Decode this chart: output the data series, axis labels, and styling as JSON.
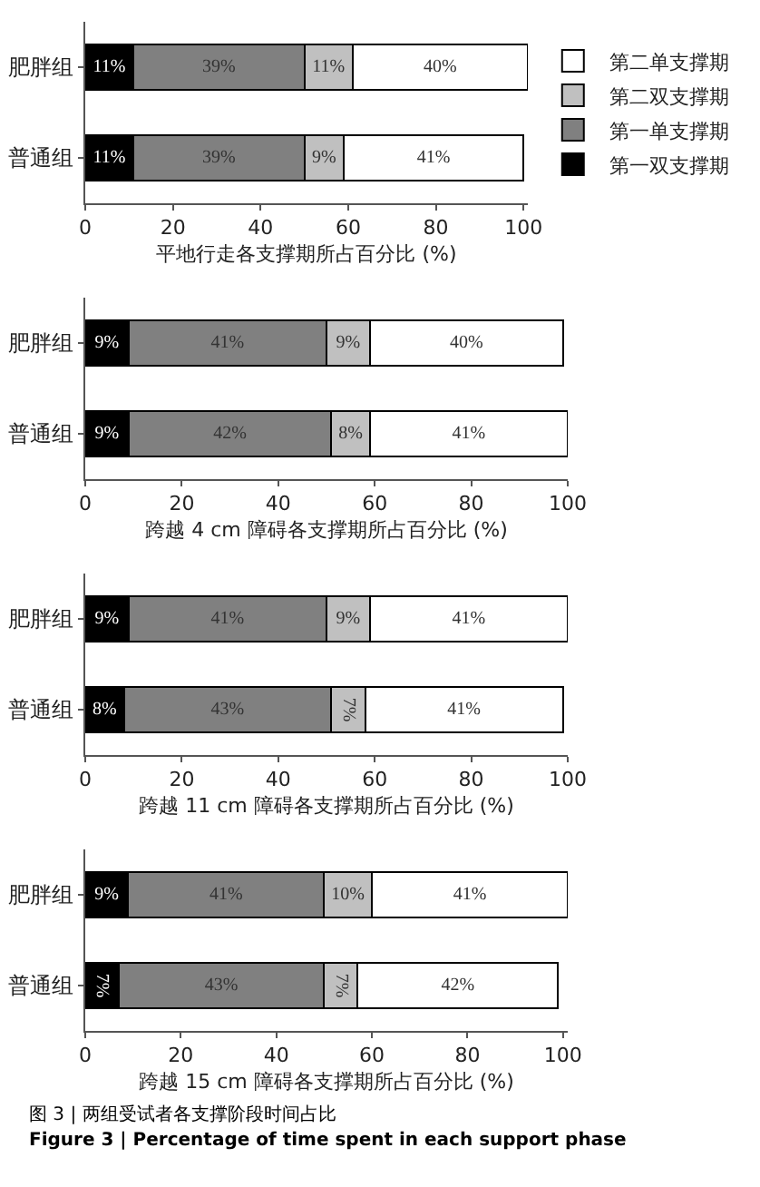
{
  "chart_data": [
    {
      "type": "bar",
      "orientation": "horizontal",
      "stacked": true,
      "xlabel": "平地行走各支撑期所占百分比 (%)",
      "categories": [
        "肥胖组",
        "普通组"
      ],
      "xlim": [
        0,
        101
      ],
      "xticks": [
        0,
        20,
        40,
        60,
        80,
        100
      ],
      "grid": false,
      "legend": "right",
      "series": [
        {
          "name": "第一双支撑期",
          "color": "#000000",
          "values": [
            11,
            11
          ],
          "value_labels": [
            "11%",
            "11%"
          ]
        },
        {
          "name": "第一单支撑期",
          "color": "#808080",
          "values": [
            39,
            39
          ],
          "value_labels": [
            "39%",
            "39%"
          ]
        },
        {
          "name": "第二双支撑期",
          "color": "#c0c0c0",
          "values": [
            11,
            9
          ],
          "value_labels": [
            "11%",
            "9%"
          ]
        },
        {
          "name": "第二单支撑期",
          "color": "#ffffff",
          "values": [
            40,
            41
          ],
          "value_labels": [
            "40%",
            "41%"
          ]
        }
      ]
    },
    {
      "type": "bar",
      "orientation": "horizontal",
      "stacked": true,
      "xlabel": "跨越 4 cm 障碍各支撑期所占百分比 (%)",
      "categories": [
        "肥胖组",
        "普通组"
      ],
      "xlim": [
        0,
        100
      ],
      "xticks": [
        0,
        20,
        40,
        60,
        80,
        100
      ],
      "grid": false,
      "series": [
        {
          "color": "#000000",
          "values": [
            9,
            9
          ],
          "value_labels": [
            "9%",
            "9%"
          ]
        },
        {
          "color": "#808080",
          "values": [
            41,
            42
          ],
          "value_labels": [
            "41%",
            "42%"
          ]
        },
        {
          "color": "#c0c0c0",
          "values": [
            9,
            8
          ],
          "value_labels": [
            "9%",
            "8%"
          ]
        },
        {
          "color": "#ffffff",
          "values": [
            40,
            41
          ],
          "value_labels": [
            "40%",
            "41%"
          ]
        }
      ]
    },
    {
      "type": "bar",
      "orientation": "horizontal",
      "stacked": true,
      "xlabel": "跨越 11 cm 障碍各支撑期所占百分比 (%)",
      "categories": [
        "肥胖组",
        "普通组"
      ],
      "xlim": [
        0,
        100
      ],
      "xticks": [
        0,
        20,
        40,
        60,
        80,
        100
      ],
      "grid": false,
      "series": [
        {
          "color": "#000000",
          "values": [
            9,
            8
          ],
          "value_labels": [
            "9%",
            "8%"
          ]
        },
        {
          "color": "#808080",
          "values": [
            41,
            43
          ],
          "value_labels": [
            "41%",
            "43%"
          ]
        },
        {
          "color": "#c0c0c0",
          "values": [
            9,
            7
          ],
          "value_labels": [
            "9%",
            "7%"
          ]
        },
        {
          "color": "#ffffff",
          "values": [
            41,
            41
          ],
          "value_labels": [
            "41%",
            "41%"
          ]
        }
      ]
    },
    {
      "type": "bar",
      "orientation": "horizontal",
      "stacked": true,
      "xlabel": "跨越 15 cm 障碍各支撑期所占百分比 (%)",
      "categories": [
        "肥胖组",
        "普通组"
      ],
      "xlim": [
        0,
        101
      ],
      "xticks": [
        0,
        20,
        40,
        60,
        80,
        100
      ],
      "grid": false,
      "annotations": [
        "图 3 | 两组受试者各支撑阶段时间占比",
        "Figure 3 | Percentage of time spent in each support phase"
      ],
      "series": [
        {
          "color": "#000000",
          "values": [
            9,
            7
          ],
          "value_labels": [
            "9%",
            "7%"
          ]
        },
        {
          "color": "#808080",
          "values": [
            41,
            43
          ],
          "value_labels": [
            "41%",
            "43%"
          ]
        },
        {
          "color": "#c0c0c0",
          "values": [
            10,
            7
          ],
          "value_labels": [
            "10%",
            "7%"
          ]
        },
        {
          "color": "#ffffff",
          "values": [
            41,
            42
          ],
          "value_labels": [
            "41%",
            "42%"
          ]
        }
      ]
    }
  ]
}
